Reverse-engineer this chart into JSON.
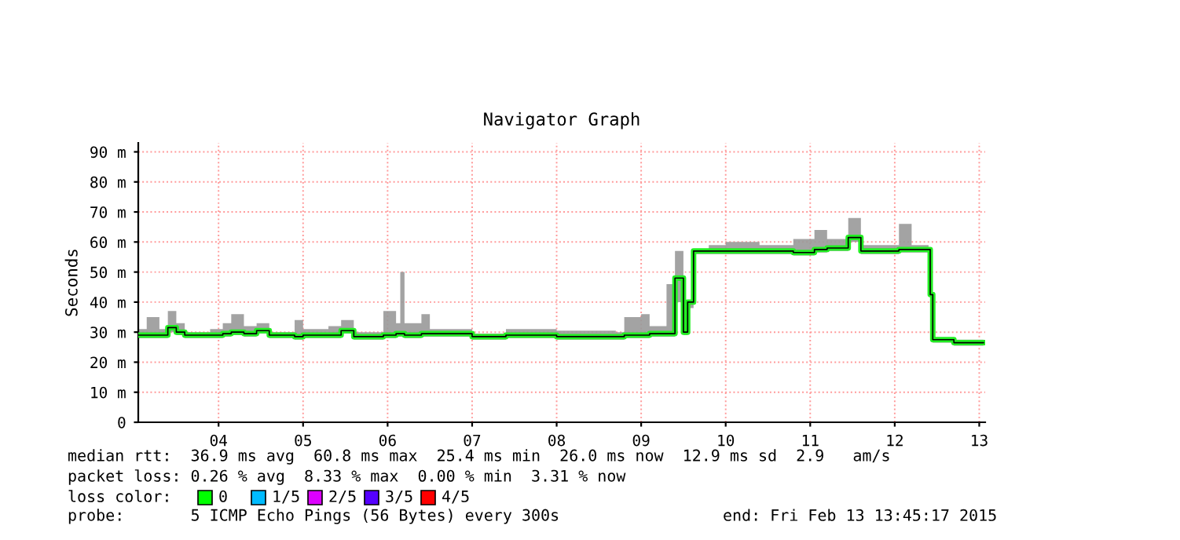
{
  "chart_data": {
    "type": "step",
    "title": "Navigator Graph",
    "ylabel": "Seconds",
    "x": [
      3.05,
      3.15,
      3.3,
      3.4,
      3.5,
      3.6,
      3.9,
      4.05,
      4.15,
      4.3,
      4.45,
      4.6,
      4.9,
      5.0,
      5.3,
      5.45,
      5.6,
      5.95,
      6.1,
      6.15,
      6.2,
      6.4,
      6.5,
      7.0,
      7.4,
      8.0,
      8.7,
      8.8,
      9.0,
      9.1,
      9.3,
      9.4,
      9.5,
      9.55,
      9.62,
      9.8,
      10.0,
      10.4,
      10.8,
      11.05,
      11.2,
      11.45,
      11.6,
      11.9,
      12.05,
      12.2,
      12.4,
      12.42,
      12.45,
      12.7,
      13.05
    ],
    "series": [
      {
        "color": "#22ee22",
        "values": [
          29,
          29,
          29,
          31.5,
          30,
          29,
          29,
          29.5,
          30,
          29.5,
          30.5,
          29,
          28.5,
          29,
          29,
          30.5,
          28.5,
          29,
          29.5,
          29.5,
          29,
          29.5,
          29.5,
          28.5,
          29,
          28.5,
          28.5,
          29,
          29,
          29.5,
          29.5,
          48,
          30,
          40,
          57,
          57,
          57,
          57,
          56.5,
          57.5,
          58,
          61.5,
          57,
          57,
          57.5,
          57.5,
          57.5,
          42.5,
          27.5,
          26.5,
          26.5
        ],
        "lower": [
          28,
          28,
          28,
          30,
          29,
          28,
          28,
          28.5,
          29,
          28.5,
          29.5,
          28,
          27.5,
          28,
          28,
          29.5,
          27.5,
          28,
          28.5,
          28.5,
          28,
          28.5,
          28.5,
          27.5,
          28,
          27.5,
          27.5,
          28,
          28,
          28.5,
          28.5,
          40,
          29,
          38,
          56,
          56,
          56,
          56,
          55.5,
          56.5,
          57,
          60,
          56,
          56,
          56.5,
          56.5,
          56.5,
          41,
          26.5,
          25.5,
          25.5
        ],
        "upper": [
          31,
          35,
          31,
          37,
          33,
          30,
          31,
          33,
          36,
          32,
          33,
          30,
          34,
          31,
          32,
          34,
          30,
          37,
          33,
          50,
          33,
          36,
          31,
          29.5,
          31,
          30.5,
          30,
          35,
          36,
          32,
          46,
          57,
          32,
          40,
          57.5,
          59,
          60,
          59,
          61,
          64,
          61,
          68,
          59,
          59,
          66,
          59,
          58,
          43,
          28,
          27.5,
          27
        ]
      }
    ],
    "xlim": [
      3.05,
      13.07
    ],
    "xticks": [
      {
        "value": 4,
        "label": "04"
      },
      {
        "value": 5,
        "label": "05"
      },
      {
        "value": 6,
        "label": "06"
      },
      {
        "value": 7,
        "label": "07"
      },
      {
        "value": 8,
        "label": "08"
      },
      {
        "value": 9,
        "label": "09"
      },
      {
        "value": 10,
        "label": "10"
      },
      {
        "value": 11,
        "label": "11"
      },
      {
        "value": 12,
        "label": "12"
      },
      {
        "value": 13,
        "label": "13"
      }
    ],
    "ylim": [
      0,
      93
    ],
    "yticks": [
      0,
      {
        "value": 10,
        "label": "10 m"
      },
      {
        "value": 20,
        "label": "20 m"
      },
      {
        "value": 30,
        "label": "30 m"
      },
      {
        "value": 40,
        "label": "40 m"
      },
      {
        "value": 50,
        "label": "50 m"
      },
      {
        "value": 60,
        "label": "60 m"
      },
      {
        "value": 70,
        "label": "70 m"
      },
      {
        "value": 80,
        "label": "80 m"
      },
      {
        "value": 90,
        "label": "90 m"
      }
    ],
    "grid": true,
    "annotations": [
      "median rtt:  36.9 ms avg  60.8 ms max  25.4 ms min  26.0 ms now  12.9 ms sd  2.9   am/s",
      "packet loss: 0.26 % avg  8.33 % max  0.00 % min  3.31 % now",
      "loss color:",
      "0",
      "1/5",
      "2/5",
      "3/5",
      "4/5",
      "probe:       5 ICMP Echo Pings (56 Bytes) every 300s",
      "end: Fri Feb 13 13:45:17 2015"
    ]
  }
}
